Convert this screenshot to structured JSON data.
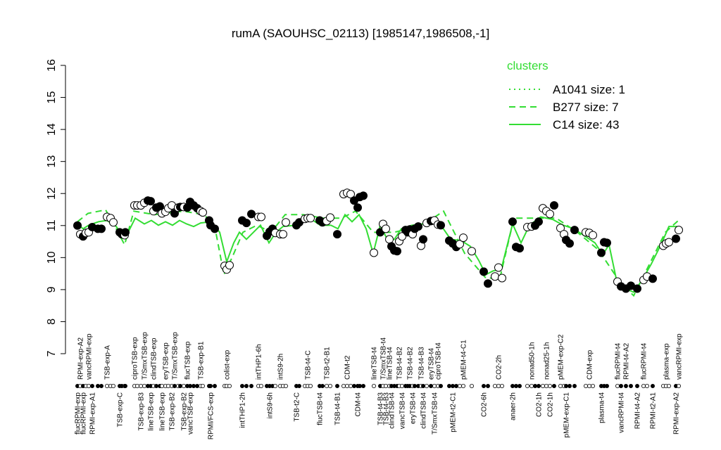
{
  "chart_data": {
    "type": "scatter",
    "title": "rumA (SAOUHSC_02113) [1985147,1986508,-1]",
    "ylim": [
      7,
      16
    ],
    "yticks": [
      7,
      8,
      9,
      10,
      11,
      12,
      13,
      14,
      15,
      16
    ],
    "xlim": [
      0,
      860
    ],
    "point_color": "#000000",
    "x": [
      2,
      6,
      10,
      14,
      18,
      23,
      31,
      36,
      44,
      49,
      53,
      62,
      65,
      69,
      70,
      83,
      87,
      92,
      97,
      102,
      106,
      110,
      114,
      119,
      122,
      127,
      131,
      136,
      140,
      145,
      148,
      153,
      158,
      162,
      167,
      172,
      177,
      180,
      189,
      191,
      197,
      211,
      214,
      218,
      236,
      242,
      249,
      259,
      263,
      271,
      275,
      279,
      283,
      290,
      294,
      298,
      313,
      317,
      325,
      329,
      333,
      346,
      350,
      356,
      361,
      371,
      380,
      385,
      390,
      395,
      400,
      403,
      408,
      423,
      432,
      436,
      440,
      445,
      448,
      452,
      456,
      459,
      463,
      468,
      471,
      474,
      478,
      481,
      486,
      490,
      493,
      498,
      504,
      509,
      514,
      518,
      530,
      535,
      540,
      545,
      550,
      562,
      579,
      585,
      595,
      600,
      605,
      620,
      625,
      630,
      641,
      647,
      652,
      657,
      663,
      668,
      673,
      679,
      688,
      693,
      696,
      701,
      708,
      724,
      729,
      734,
      746,
      750,
      754,
      769,
      774,
      781,
      788,
      797,
      806,
      811,
      819,
      834,
      838,
      842,
      852,
      856
    ],
    "values": [
      11.0,
      10.73,
      10.66,
      10.77,
      10.79,
      10.95,
      10.9,
      10.9,
      11.27,
      11.23,
      11.1,
      10.79,
      10.73,
      10.7,
      10.79,
      11.63,
      11.63,
      11.63,
      11.71,
      11.78,
      11.76,
      11.45,
      11.56,
      11.6,
      11.38,
      11.43,
      11.54,
      11.63,
      11.38,
      11.56,
      11.58,
      11.58,
      11.56,
      11.74,
      11.63,
      11.54,
      11.45,
      11.41,
      11.16,
      11.01,
      10.9,
      9.74,
      9.63,
      9.76,
      11.16,
      11.08,
      11.36,
      11.27,
      11.27,
      10.68,
      10.81,
      10.9,
      10.77,
      10.73,
      10.73,
      11.1,
      11.01,
      11.1,
      11.21,
      11.23,
      11.23,
      11.16,
      11.1,
      11.14,
      11.25,
      10.73,
      11.98,
      12.02,
      11.98,
      11.78,
      11.56,
      11.89,
      11.93,
      10.15,
      10.79,
      11.05,
      10.9,
      10.57,
      10.35,
      10.22,
      10.2,
      10.51,
      10.66,
      10.86,
      10.79,
      10.88,
      10.73,
      10.9,
      10.97,
      10.37,
      10.57,
      11.08,
      11.14,
      11.16,
      11.03,
      11.01,
      10.53,
      10.44,
      10.33,
      10.42,
      10.62,
      10.2,
      9.56,
      9.19,
      9.41,
      9.69,
      9.36,
      11.12,
      10.33,
      10.29,
      10.95,
      10.97,
      11.0,
      11.12,
      11.54,
      11.45,
      11.36,
      11.63,
      10.92,
      10.73,
      10.55,
      10.44,
      10.86,
      10.79,
      10.77,
      10.7,
      10.15,
      10.48,
      10.46,
      9.25,
      9.1,
      9.03,
      9.12,
      9.03,
      9.3,
      9.41,
      9.34,
      10.37,
      10.44,
      10.48,
      10.59,
      10.86
    ],
    "filled": [
      true,
      false,
      true,
      false,
      false,
      true,
      true,
      true,
      false,
      false,
      false,
      true,
      true,
      false,
      true,
      false,
      false,
      false,
      false,
      true,
      true,
      false,
      true,
      true,
      false,
      false,
      false,
      false,
      true,
      false,
      true,
      false,
      true,
      true,
      true,
      true,
      false,
      false,
      true,
      true,
      true,
      false,
      false,
      false,
      true,
      true,
      true,
      false,
      false,
      true,
      true,
      true,
      false,
      false,
      false,
      false,
      true,
      true,
      false,
      false,
      false,
      true,
      true,
      false,
      false,
      true,
      false,
      false,
      false,
      true,
      true,
      true,
      true,
      false,
      true,
      false,
      false,
      false,
      true,
      true,
      true,
      false,
      false,
      true,
      true,
      true,
      false,
      true,
      true,
      false,
      true,
      false,
      true,
      false,
      false,
      true,
      true,
      true,
      true,
      false,
      false,
      false,
      true,
      true,
      false,
      false,
      false,
      true,
      true,
      true,
      false,
      false,
      true,
      true,
      false,
      false,
      false,
      true,
      false,
      false,
      true,
      true,
      true,
      false,
      false,
      false,
      true,
      true,
      true,
      false,
      true,
      true,
      true,
      true,
      false,
      false,
      true,
      false,
      false,
      false,
      true,
      false
    ],
    "categories": [
      "flucRPMI-exp",
      "RPMI-exp-A2",
      "flucRPMI-exp",
      null,
      "vancRPMI-exp",
      "RPMI-exp-A1",
      null,
      null,
      "TSB-exp-A",
      null,
      null,
      "TSB-exp-C",
      null,
      null,
      null,
      "ciproTSB-exp",
      null,
      "TSB-exp-B3",
      "T/SmxTSB-exp",
      null,
      "lineTSB-exp",
      "clindTSB-exp",
      null,
      null,
      "lineTSB-exp",
      "eryTSB-exp",
      null,
      "TSB-exp-B2",
      "T/SmxTSB-exp",
      null,
      null,
      "TSB-exp-B2",
      "flucTSB-exp",
      "vancTSB-exp",
      null,
      null,
      "TSB-exp-B1",
      null,
      null,
      "RPMI/FCS-exp",
      null,
      null,
      "colist-exp",
      null,
      "intTHP1-2h",
      null,
      null,
      "intTHP1-6h",
      null,
      null,
      "intS9-6h",
      null,
      null,
      "intS9-2h",
      null,
      null,
      "TSB-t2-C",
      null,
      null,
      "TSB-t4-C",
      null,
      "flucTSB-t4",
      null,
      "TSB-t2-B1",
      null,
      "TSB-t4-B1",
      null,
      "CDM-t2",
      null,
      null,
      "CDM-t4",
      null,
      null,
      "lineTSB-t4",
      "TSB-t4-B3",
      "T/SmxTSB-t4",
      "TSB-t4-B3",
      "lineTSB-t4",
      "clindTSB-t4",
      null,
      null,
      "TSB-t4-B2",
      "vancTSB-t4",
      null,
      null,
      "TSB-t4-B2",
      "eryTSB-t4",
      null,
      null,
      "TSB-t4-B3",
      "clindTSB-t4",
      null,
      "eryTSB-t4",
      "T/SmxTSB-t4",
      "ciproTSB-t4",
      null,
      null,
      "pMEM-t2-C1",
      null,
      null,
      "pMEM-t4-C1",
      null,
      "CO2-6h",
      null,
      null,
      "CO2-2h",
      null,
      "anaer-2h",
      null,
      null,
      null,
      "nonad50-1h",
      null,
      "CO2-1h",
      null,
      "nonad25-1h",
      "CO2-1h",
      null,
      "pMEM-exp-C2",
      null,
      "pMEM-exp-C1",
      null,
      null,
      null,
      "CDM-exp",
      null,
      "plasma-t4",
      null,
      null,
      "flucRPMI-t4",
      "vancRPMI-t4",
      "RPMI-t4-A2",
      null,
      "RPMI-t4-A2",
      "flucRPMI-t4",
      null,
      "RPMI-t2-A1",
      null,
      "plasma-exp",
      null,
      "RPMI-exp-A2",
      "vancRPMI-exp"
    ],
    "legend_title": "clusters",
    "legend": "top-right",
    "series": [
      {
        "name": "A1041 size: 1",
        "color": "#33dd33",
        "style": "dotted",
        "x": [],
        "values": []
      },
      {
        "name": "B277 size: 7",
        "color": "#33dd33",
        "style": "dashed",
        "x": [
          2,
          17,
          42,
          57,
          69,
          82,
          112,
          152,
          182,
          197,
          210,
          222,
          237,
          257,
          277,
          297,
          322,
          352,
          377,
          397,
          422,
          452,
          492,
          522,
          552,
          582,
          602,
          622,
          652,
          682,
          712,
          742,
          772,
          792,
          817,
          837,
          857
        ],
        "values": [
          11.12,
          11.38,
          11.49,
          10.9,
          10.4,
          11.45,
          11.34,
          11.45,
          11.34,
          10.97,
          9.47,
          10.02,
          10.79,
          11.01,
          10.79,
          11.34,
          11.34,
          11.23,
          11.23,
          11.45,
          10.79,
          10.79,
          11.01,
          11.45,
          10.13,
          9.36,
          9.36,
          11.23,
          11.23,
          11.23,
          10.79,
          10.24,
          9.25,
          8.81,
          9.91,
          10.79,
          11.19
        ]
      },
      {
        "name": "C14 size: 43",
        "color": "#33dd33",
        "style": "solid",
        "x": [
          2,
          10,
          18,
          32,
          44,
          57,
          67,
          74,
          84,
          97,
          107,
          117,
          127,
          137,
          147,
          157,
          167,
          177,
          192,
          204,
          214,
          224,
          232,
          242,
          252,
          262,
          274,
          284,
          294,
          312,
          332,
          347,
          362,
          372,
          382,
          392,
          402,
          412,
          422,
          432,
          442,
          452,
          462,
          477,
          492,
          504,
          517,
          532,
          547,
          560,
          572,
          582,
          592,
          604,
          620,
          632,
          644,
          660,
          677,
          692,
          707,
          722,
          737,
          748,
          757,
          767,
          780,
          792,
          804,
          817,
          832,
          842,
          854
        ],
        "values": [
          11.05,
          10.9,
          11.01,
          11.12,
          11.16,
          10.97,
          10.68,
          10.79,
          11.23,
          11.05,
          11.16,
          11.01,
          11.12,
          11.01,
          11.16,
          11.05,
          10.97,
          11.08,
          11.12,
          10.79,
          9.87,
          10.46,
          10.79,
          10.57,
          10.79,
          11.01,
          10.46,
          10.79,
          10.97,
          11.01,
          11.23,
          11.01,
          11.01,
          10.9,
          11.34,
          11.12,
          11.34,
          10.9,
          10.13,
          11.01,
          10.57,
          10.57,
          10.9,
          11.01,
          11.05,
          11.19,
          11.05,
          10.57,
          10.53,
          10.35,
          9.91,
          9.47,
          9.58,
          9.65,
          11.05,
          10.46,
          11.01,
          11.27,
          11.19,
          11.01,
          10.9,
          10.68,
          10.46,
          10.09,
          10.4,
          9.36,
          9.03,
          8.92,
          9.3,
          9.8,
          10.46,
          10.97,
          10.97
        ]
      }
    ]
  }
}
